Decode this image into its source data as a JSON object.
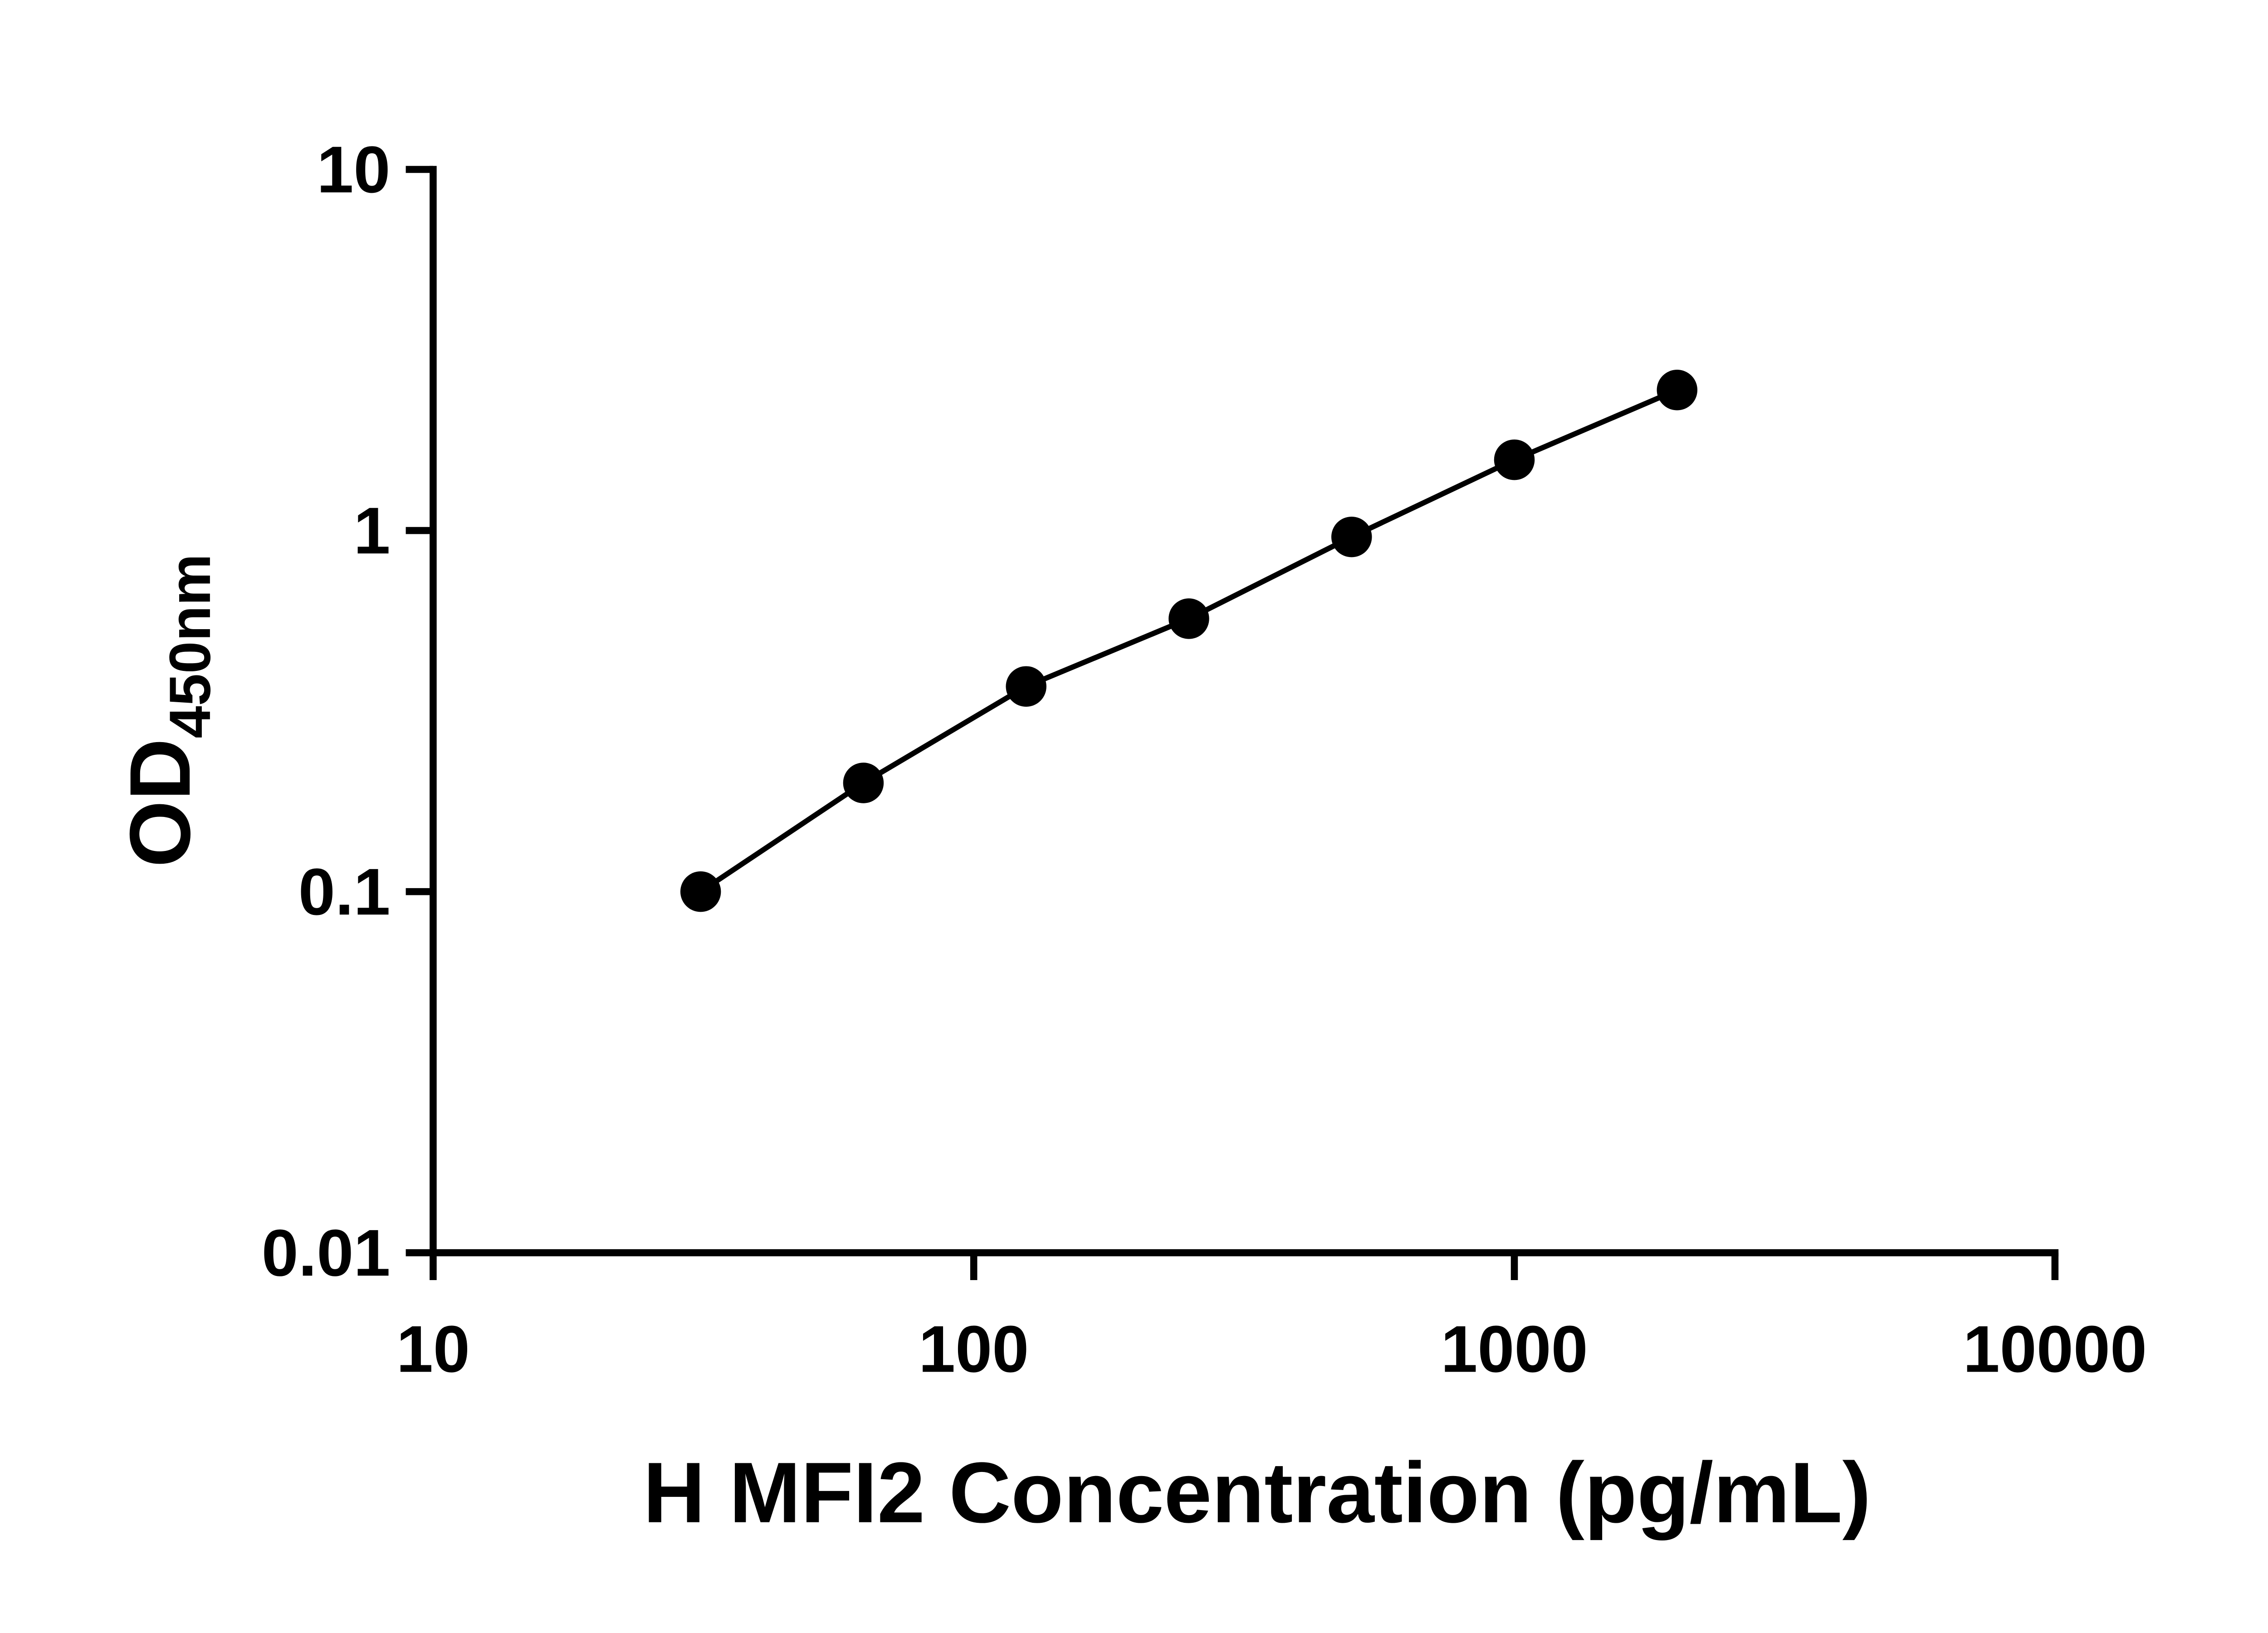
{
  "chart_data": {
    "type": "scatter",
    "title": "",
    "xlabel": "H MFI2 Concentration (pg/mL)",
    "ylabel_main": "OD",
    "ylabel_sub": "450nm",
    "x_scale": "log",
    "y_scale": "log",
    "xlim": [
      10,
      10000
    ],
    "ylim": [
      0.01,
      10
    ],
    "x_ticks": [
      10,
      100,
      1000,
      10000
    ],
    "x_tick_labels": [
      "10",
      "100",
      "1000",
      "10000"
    ],
    "y_ticks": [
      0.01,
      0.1,
      1,
      10
    ],
    "y_tick_labels": [
      "0.01",
      "0.1",
      "1",
      "10"
    ],
    "x": [
      31.25,
      62.5,
      125,
      250,
      500,
      1000,
      2000
    ],
    "y": [
      0.1,
      0.2,
      0.37,
      0.57,
      0.96,
      1.57,
      2.45
    ],
    "grid": false,
    "legend": false,
    "marker_shape": "circle",
    "marker_color": "#000000",
    "line_color": "#000000",
    "background_color": "#ffffff"
  }
}
